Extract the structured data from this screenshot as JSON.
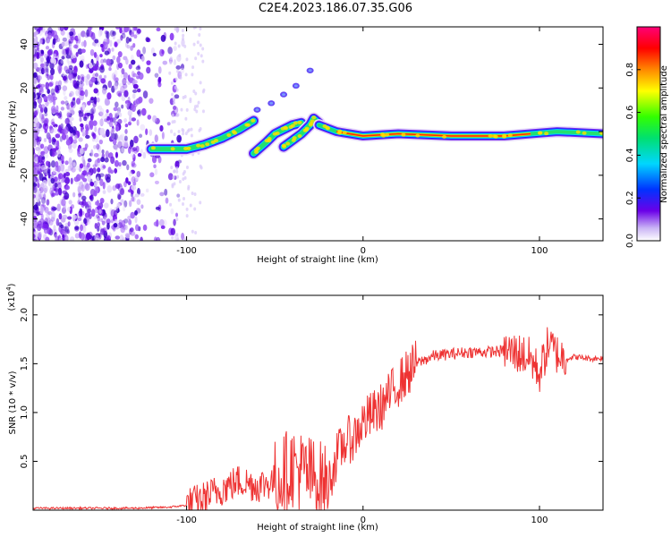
{
  "title": "C2E4.2023.186.07.35.G06",
  "colors": {
    "snr_line": "#ee3333",
    "background": "#ffffff",
    "axis": "#000000"
  },
  "chart_data": [
    {
      "type": "heatmap",
      "xlabel": "Height of straight line (km)",
      "ylabel": "Frequency (Hz)",
      "xlim": [
        -187,
        136
      ],
      "ylim": [
        -50,
        48
      ],
      "xticks": [
        -100,
        0,
        100
      ],
      "xtick_labels": [
        "-100",
        "0",
        "100"
      ],
      "yticks": [
        -40,
        -20,
        0,
        20,
        40
      ],
      "ytick_labels": [
        "-40",
        "-20",
        "0",
        "20",
        "40"
      ],
      "colorbar": {
        "label": "Normalized spectral amplitude",
        "range": [
          0,
          1
        ],
        "ticks": [
          0.0,
          0.2,
          0.4,
          0.6,
          0.8
        ],
        "tick_labels": [
          "0.0",
          "0.2",
          "0.4",
          "0.6",
          "0.8"
        ]
      },
      "ridge_segments": [
        {
          "x": [
            -120,
            -100,
            -90,
            -80,
            -70,
            -62
          ],
          "y": [
            -8,
            -8,
            -6,
            -3,
            1,
            5
          ]
        },
        {
          "x": [
            -62,
            -55,
            -50,
            -45,
            -40,
            -35
          ],
          "y": [
            -10,
            -5,
            -1,
            1,
            3,
            4
          ]
        },
        {
          "x": [
            -45,
            -40,
            -35,
            -30,
            -28,
            -25
          ],
          "y": [
            -7,
            -4,
            -1,
            3,
            6,
            4
          ]
        },
        {
          "x": [
            -25,
            -15,
            0,
            20,
            50,
            80,
            95,
            110,
            136
          ],
          "y": [
            3,
            0,
            -2,
            -1,
            -2,
            -2,
            -1,
            0,
            -1
          ]
        }
      ],
      "upper_streak": {
        "x": [
          -60,
          -52,
          -45,
          -38,
          -30
        ],
        "y": [
          10,
          13,
          17,
          21,
          28
        ]
      }
    },
    {
      "type": "line",
      "xlabel": "Height of straight line (km)",
      "ylabel": "SNR (10 * v/v)",
      "y_multiplier_label": "(x10",
      "y_multiplier_exp": "4",
      "xlim": [
        -187,
        136
      ],
      "ylim": [
        0,
        2.2
      ],
      "xticks": [
        -100,
        0,
        100
      ],
      "xtick_labels": [
        "-100",
        "0",
        "100"
      ],
      "yticks": [
        0.5,
        1.0,
        1.5,
        2.0
      ],
      "ytick_labels": [
        "0.5",
        "1.0",
        "1.5",
        "2.0"
      ],
      "series": [
        {
          "name": "SNR",
          "x": [
            -187,
            -160,
            -130,
            -110,
            -100,
            -90,
            -80,
            -70,
            -60,
            -50,
            -40,
            -30,
            -20,
            -15,
            -10,
            -5,
            0,
            10,
            20,
            30,
            40,
            50,
            60,
            70,
            80,
            90,
            95,
            100,
            105,
            110,
            115,
            120,
            130,
            136
          ],
          "values": [
            0.02,
            0.02,
            0.02,
            0.03,
            0.05,
            0.12,
            0.22,
            0.3,
            0.25,
            0.3,
            0.45,
            0.35,
            0.25,
            0.55,
            0.7,
            0.75,
            0.9,
            1.05,
            1.3,
            1.5,
            1.58,
            1.6,
            1.62,
            1.62,
            1.63,
            1.6,
            1.55,
            1.4,
            1.7,
            1.6,
            1.55,
            1.57,
            1.55,
            1.56
          ]
        }
      ]
    }
  ]
}
